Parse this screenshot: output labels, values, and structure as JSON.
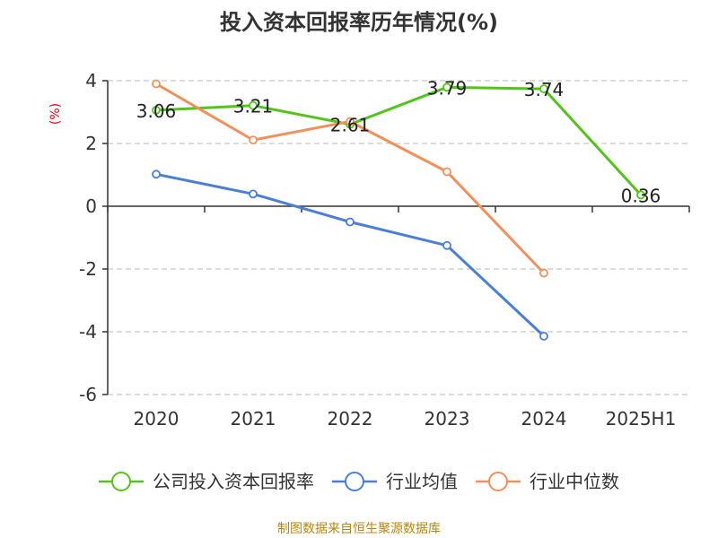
{
  "chart_data": {
    "type": "line",
    "title": "投入资本回报率历年情况(%)",
    "ylabel": "(%)",
    "categories": [
      "2020",
      "2021",
      "2022",
      "2023",
      "2024",
      "2025H1"
    ],
    "ylim": [
      -6,
      4
    ],
    "yticks": [
      4,
      2,
      0,
      -2,
      -4,
      -6
    ],
    "grid": true,
    "legend_position": "bottom",
    "series": [
      {
        "name": "公司投入资本回报率",
        "color": "#52c41a",
        "values": [
          3.06,
          3.21,
          2.61,
          3.79,
          3.74,
          0.36
        ],
        "labels": [
          "3.06",
          "3.21",
          "2.61",
          "3.79",
          "3.74",
          "0.36"
        ]
      },
      {
        "name": "行业均值",
        "color": "#4a7fd8",
        "values": [
          1.02,
          0.39,
          -0.5,
          -1.25,
          -4.14,
          null
        ]
      },
      {
        "name": "行业中位数",
        "color": "#f39059",
        "values": [
          3.9,
          2.11,
          2.7,
          1.1,
          -2.13,
          null
        ]
      }
    ],
    "source": "制图数据来自恒生聚源数据库"
  }
}
